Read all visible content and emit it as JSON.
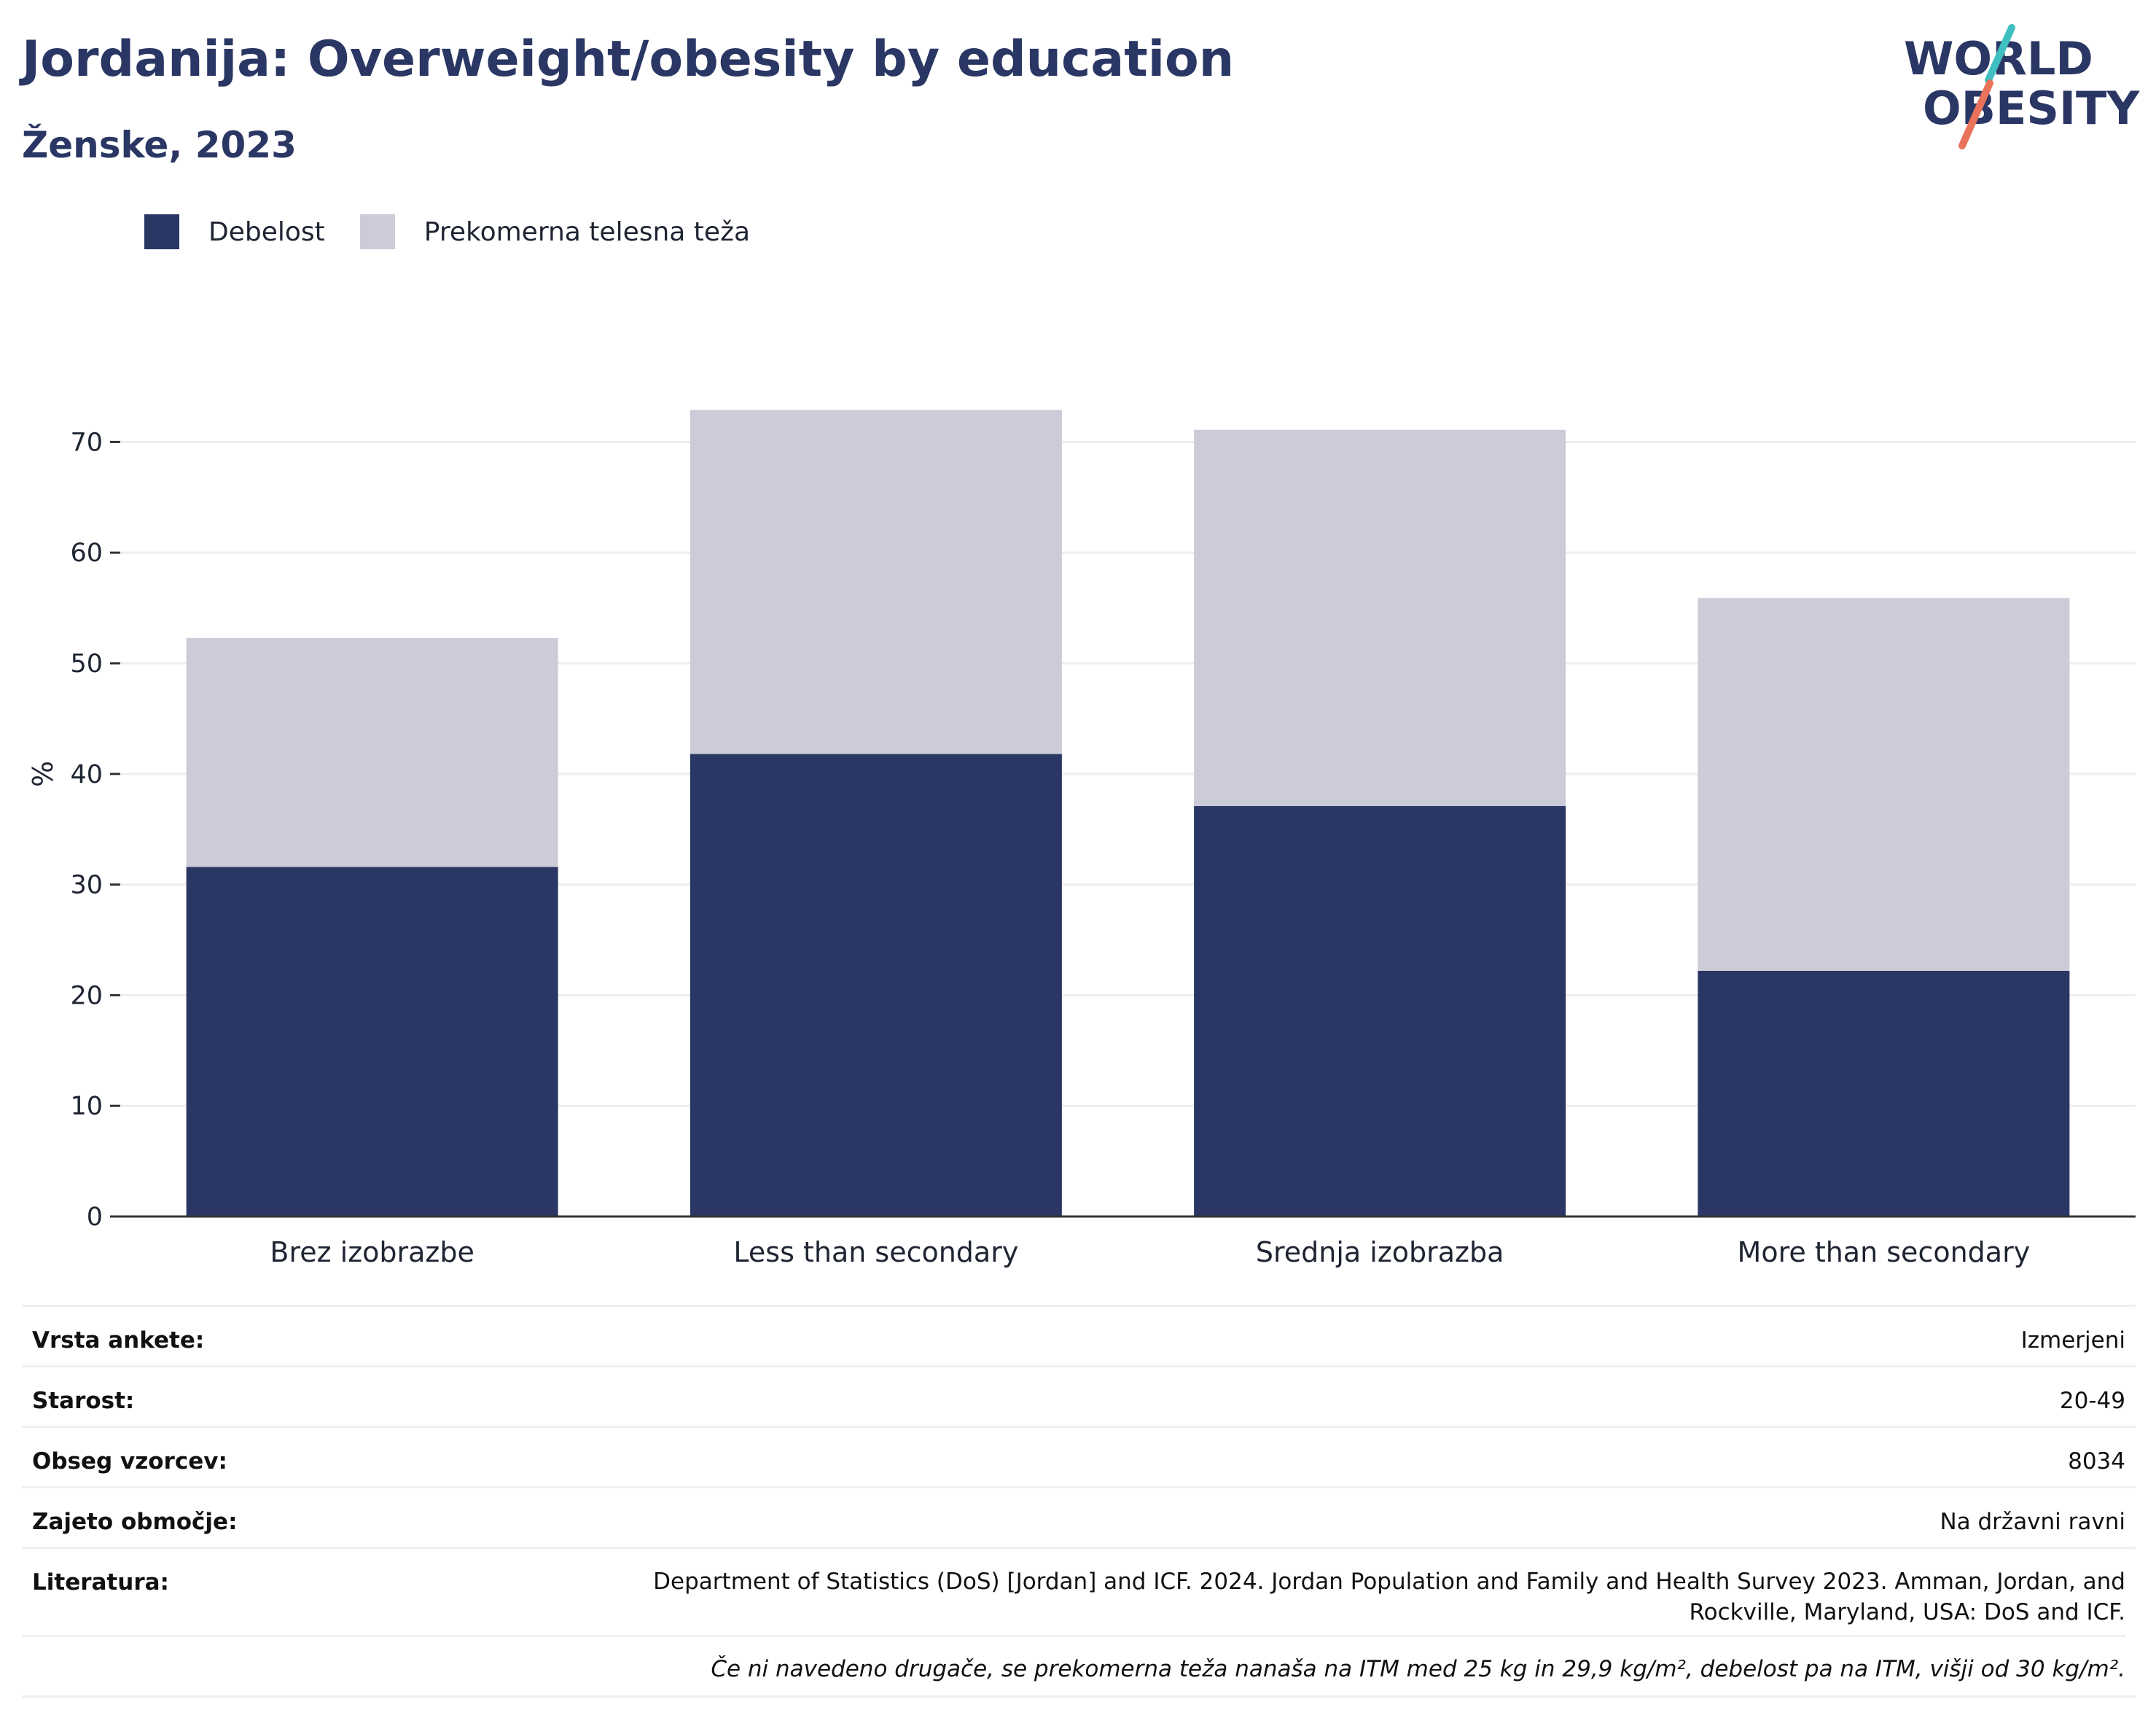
{
  "header": {
    "title": "Jordanija: Overweight/obesity by education",
    "subtitle": "Ženske, 2023"
  },
  "logo": {
    "line1": "WORLD",
    "line2": "OBESITY",
    "colors": {
      "text": "#2a3663",
      "slash_teal": "#3fbfbf",
      "slash_coral": "#e8735a"
    }
  },
  "colors": {
    "obesity": "#2a3663",
    "overweight": "#cbccd7",
    "grid": "#eeeeee",
    "axis": "#333333"
  },
  "chart_data": {
    "type": "bar",
    "stacked": true,
    "title": "",
    "xlabel": "",
    "ylabel": "%",
    "ylim": [
      0,
      73
    ],
    "yticks": [
      0,
      10,
      20,
      30,
      40,
      50,
      60,
      70
    ],
    "grid": true,
    "legend_position": "top-left",
    "categories": [
      "Brez izobrazbe",
      "Less than secondary",
      "Srednja izobrazba",
      "More than secondary"
    ],
    "series": [
      {
        "name": "Debelost",
        "values": [
          31.6,
          41.8,
          37.1,
          22.2
        ]
      },
      {
        "name": "Prekomerna telesna teža",
        "values": [
          20.7,
          31.1,
          34.0,
          33.7
        ]
      }
    ]
  },
  "meta": {
    "rows": [
      {
        "key": "Vrsta ankete:",
        "value": "Izmerjeni"
      },
      {
        "key": "Starost:",
        "value": "20-49"
      },
      {
        "key": "Obseg vzorcev:",
        "value": "8034"
      },
      {
        "key": "Zajeto območje:",
        "value": "Na državni ravni"
      },
      {
        "key": "Literatura:",
        "value": "Department of Statistics (DoS) [Jordan] and ICF. 2024. Jordan Population and Family and Health Survey 2023. Amman, Jordan, and Rockville, Maryland, USA: DoS and ICF."
      }
    ],
    "note": "Če ni navedeno drugače, se prekomerna teža nanaša na ITM med 25 kg in 29,9 kg/m², debelost pa na ITM, višji od 30 kg/m²."
  }
}
